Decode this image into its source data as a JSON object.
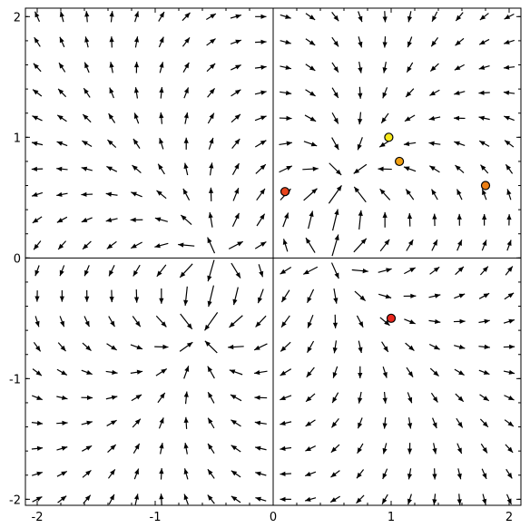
{
  "chart_data": {
    "type": "quiver",
    "title": "",
    "xlabel": "",
    "ylabel": "",
    "xlim": [
      -2.1,
      2.1
    ],
    "ylim": [
      -2.05,
      2.07
    ],
    "xticks": [
      {
        "value": -2,
        "label": "-2"
      },
      {
        "value": -1,
        "label": "-1"
      },
      {
        "value": 0,
        "label": "0"
      },
      {
        "value": 1,
        "label": "1"
      },
      {
        "value": 2,
        "label": "2"
      }
    ],
    "yticks": [
      {
        "value": -2,
        "label": "-2"
      },
      {
        "value": -1,
        "label": "-1"
      },
      {
        "value": 0,
        "label": "0"
      },
      {
        "value": 1,
        "label": "1"
      },
      {
        "value": 2,
        "label": "2"
      }
    ],
    "grid": false,
    "vector_field": {
      "x_range": [
        -2,
        2
      ],
      "y_range": [
        -2,
        2
      ],
      "grid_count": 20,
      "sources": [
        {
          "x": -0.5,
          "y": 0.0
        },
        {
          "x": 0.5,
          "y": 0.0
        }
      ],
      "sinks": [
        {
          "x": 0.6,
          "y": 0.6
        },
        {
          "x": -0.6,
          "y": -0.6
        }
      ],
      "arrow_color": "#000000"
    },
    "points": [
      {
        "x": 0.1,
        "y": 0.55,
        "color": "#e8441c"
      },
      {
        "x": 0.98,
        "y": 1.0,
        "color": "#f7e81a"
      },
      {
        "x": 1.07,
        "y": 0.8,
        "color": "#f2a012"
      },
      {
        "x": 1.8,
        "y": 0.6,
        "color": "#ec7e12"
      },
      {
        "x": 1.0,
        "y": -0.5,
        "color": "#e8261c"
      }
    ]
  }
}
